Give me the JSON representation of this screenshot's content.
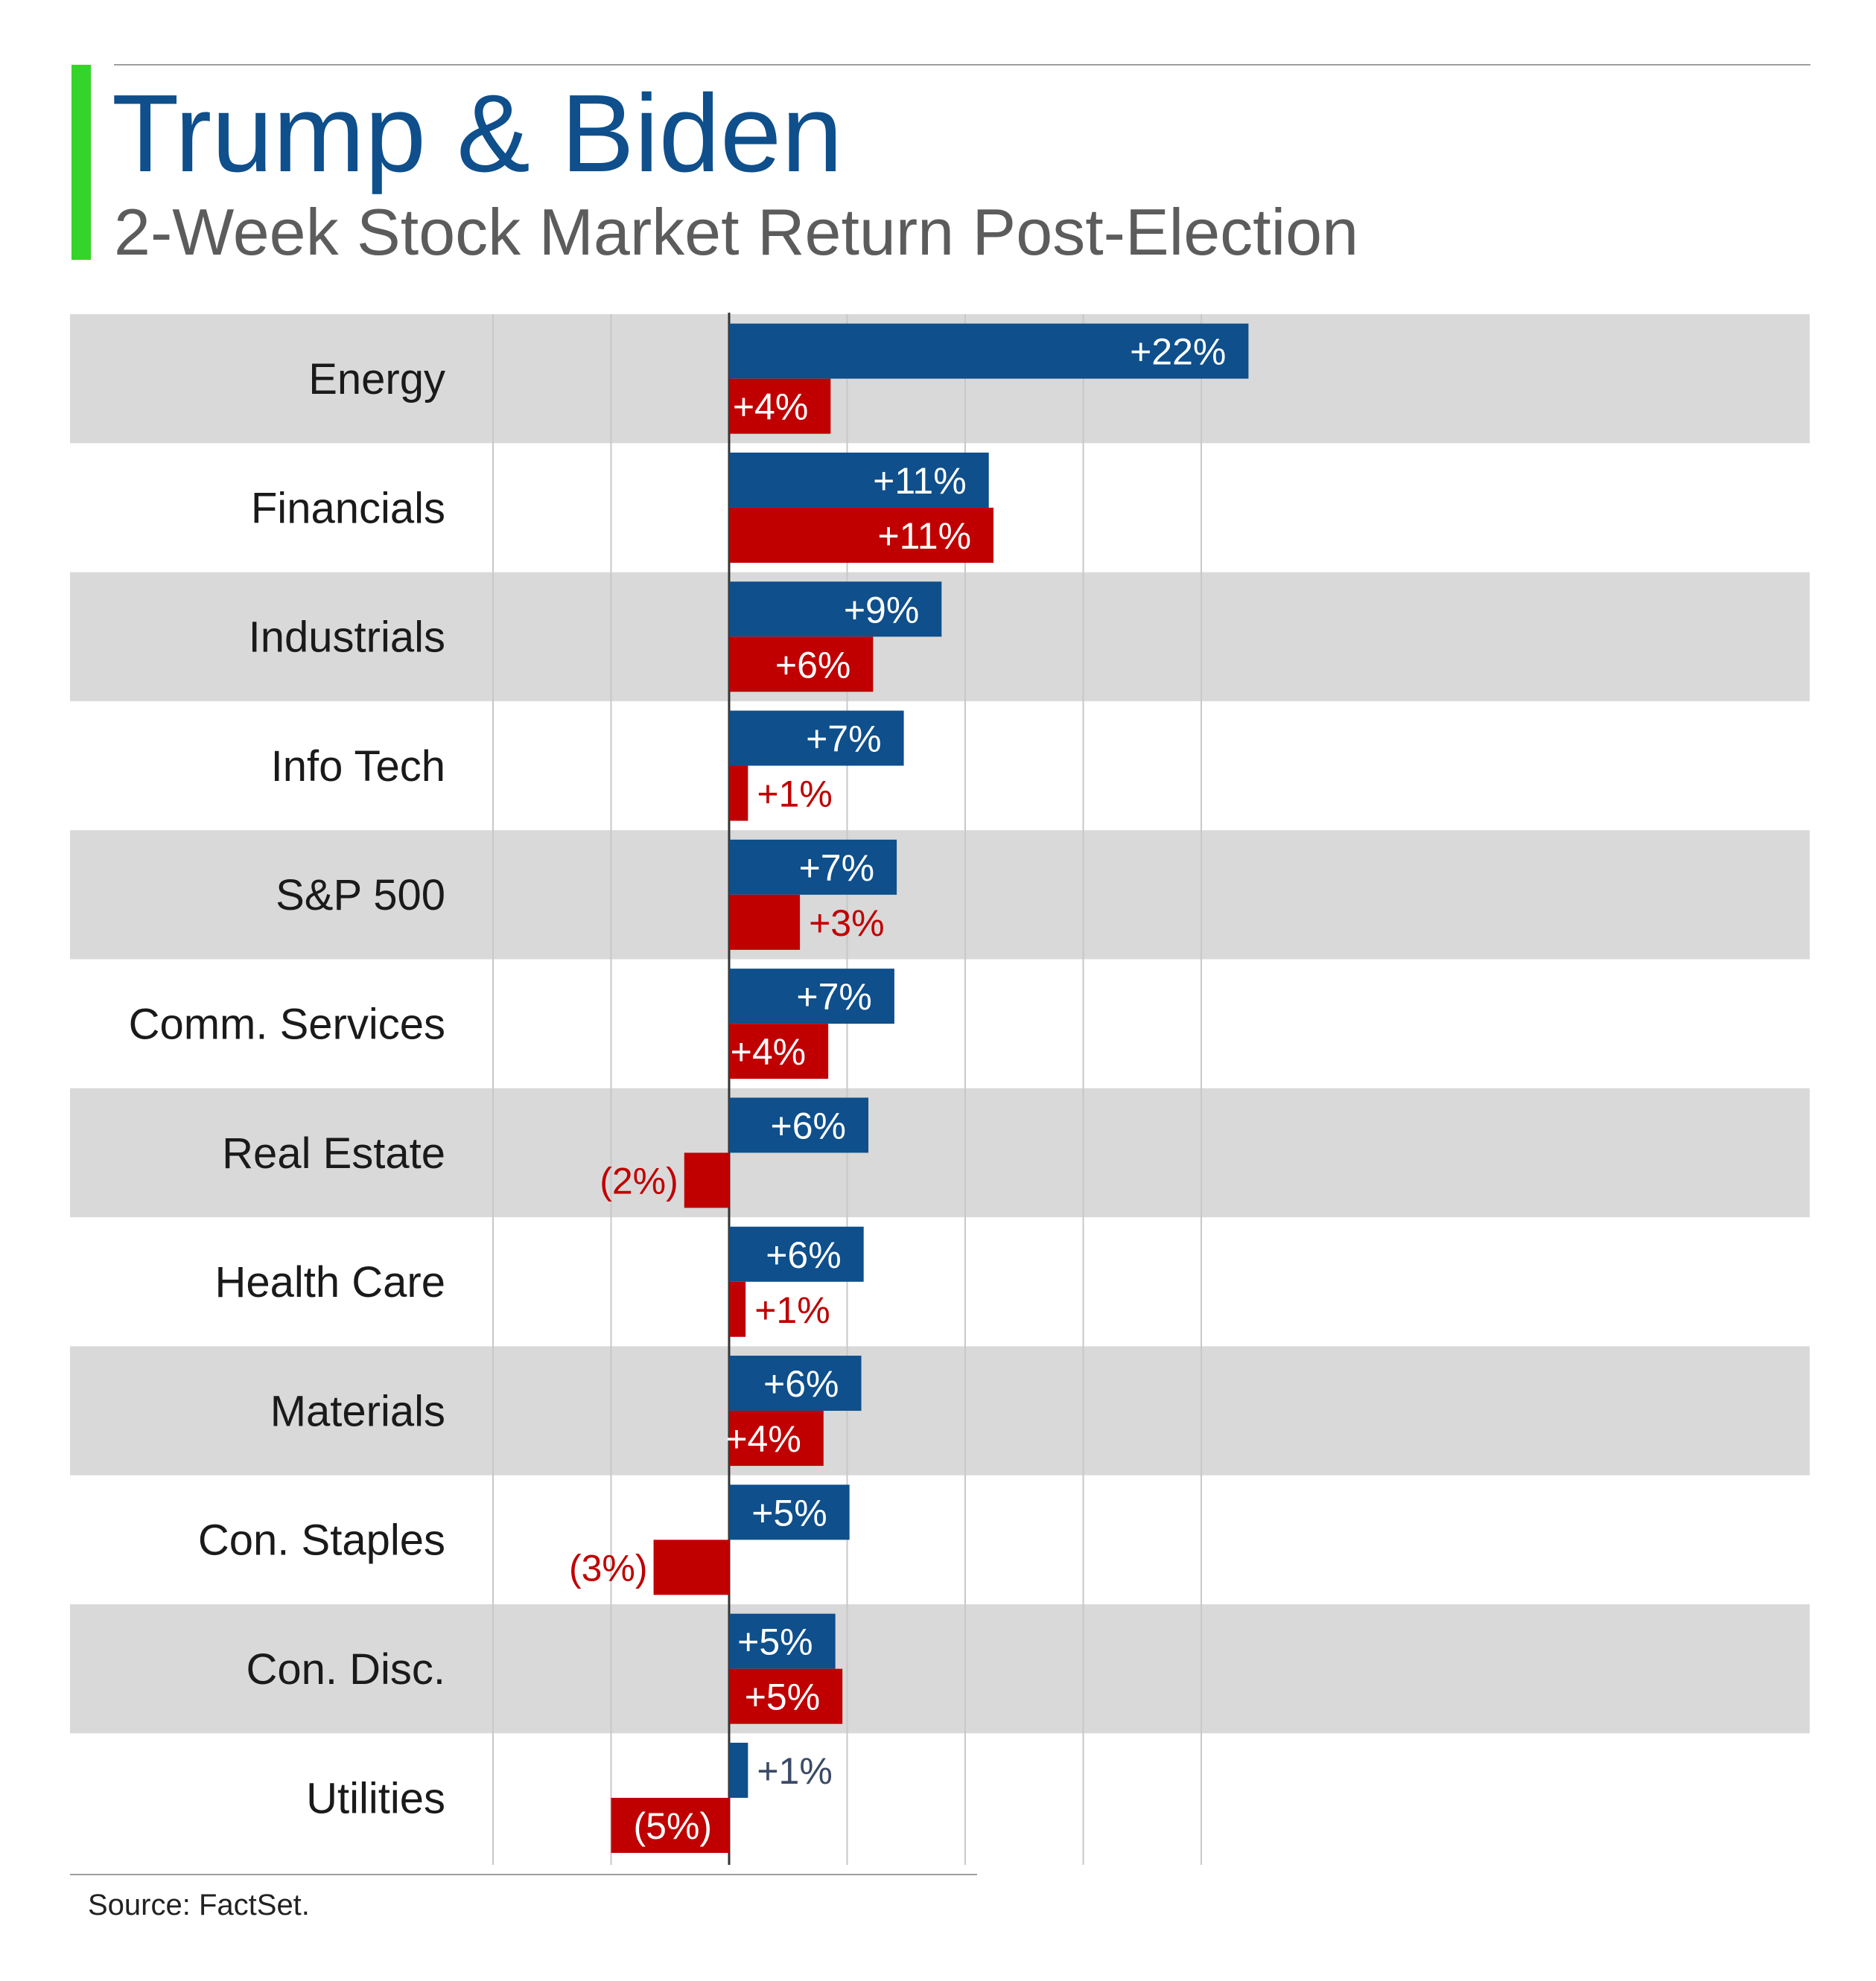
{
  "header": {
    "title": "Trump & Biden",
    "subtitle": "2-Week Stock Market Return Post-Election"
  },
  "footer": {
    "source": "Source: FactSet."
  },
  "colors": {
    "trump": "#0e4f8c",
    "biden": "#c00000",
    "band": "#d9d9d9",
    "grid": "#c8c8c8",
    "accent": "#35d42a"
  },
  "chart_data": {
    "type": "bar",
    "orientation": "horizontal",
    "categories": [
      "Energy",
      "Financials",
      "Industrials",
      "Info Tech",
      "S&P 500",
      "Comm. Services",
      "Real Estate",
      "Health Care",
      "Materials",
      "Con. Staples",
      "Con. Disc.",
      "Utilities"
    ],
    "series": [
      {
        "values": [
          22,
          11,
          9,
          7.4,
          7.1,
          7,
          5.9,
          5.7,
          5.6,
          5.1,
          4.5,
          0.8
        ],
        "labels": [
          "+22%",
          "+11%",
          "+9%",
          "+7%",
          "+7%",
          "+7%",
          "+6%",
          "+6%",
          "+6%",
          "+5%",
          "+5%",
          "+1%"
        ]
      },
      {
        "values": [
          4.3,
          11.2,
          6.1,
          0.8,
          3,
          4.2,
          -1.9,
          0.7,
          4,
          -3.2,
          4.8,
          -5
        ],
        "labels": [
          "+4%",
          "+11%",
          "+6%",
          "+1%",
          "+3%",
          "+4%",
          "(2%)",
          "+1%",
          "+4%",
          "(3%)",
          "+5%",
          "(5%)"
        ]
      }
    ],
    "xlim": [
      -10,
      23
    ],
    "grid": true,
    "legend": "none"
  }
}
